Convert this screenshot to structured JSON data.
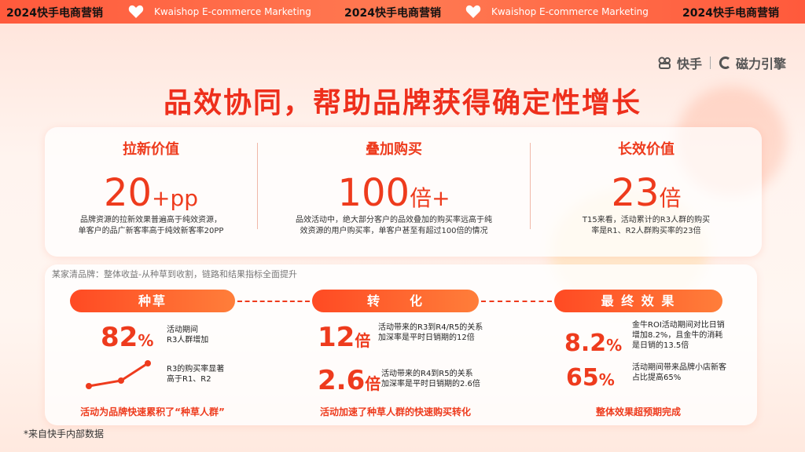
{
  "topbar": {
    "cn": "2024快手电商营销",
    "en": "Kwaishop E-commerce Marketing"
  },
  "logo": {
    "kuaishou": "快手",
    "cili": "磁力引擎"
  },
  "title": "品效协同，帮助品牌获得确定性增长",
  "values": [
    {
      "heading": "拉新价值",
      "big": "20",
      "big_unit": "+pp",
      "desc_1": "品牌资源的拉新效果普遍高于纯效资源，",
      "desc_2": "单客户的品广新客率高于纯效新客率20PP"
    },
    {
      "heading": "叠加购买",
      "big": "100",
      "big_unit": "倍+",
      "desc_1": "品效活动中，绝大部分客户的品效叠加的购买率远高于纯",
      "desc_2": "效资源的用户购买率，单客户甚至有超过100倍的情况"
    },
    {
      "heading": "长效价值",
      "big": "23",
      "big_unit": "倍",
      "desc_1": "T15来看，活动累计的R3人群的购买",
      "desc_2": "率是R1、R2人群购买率的23倍"
    }
  ],
  "case": {
    "label": "某家清品牌：整体收益-从种草到收割，链路和结果指标全面提升",
    "stages": [
      {
        "pill": "种草",
        "stat1": "82",
        "stat1_unit": "%",
        "note1_1": "活动期间",
        "note1_2": "R3人群增加",
        "note2_1": "R3的购买率显著",
        "note2_2": "高于R1、R2",
        "footer": "活动为品牌快速累积了“种草人群”"
      },
      {
        "pill": "转　　化",
        "stat1": "12",
        "stat1_unit": "倍",
        "note1_1": "活动带来的R3到R4/R5的关系",
        "note1_2": "加深率是平时日销期的12倍",
        "stat2": "2.6",
        "stat2_unit": "倍",
        "note2_1": "活动带来的R4到R5的关系",
        "note2_2": "加深率是平时日销期的2.6倍",
        "footer": "活动加速了种草人群的快速购买转化"
      },
      {
        "pill": "最 终 效 果",
        "stat1": "8.2",
        "stat1_unit": "%",
        "note1_1": "金牛ROI活动期间对比日销",
        "note1_2": "增加8.2%，且金牛的消耗",
        "note1_3": "是日销的13.5倍",
        "stat2": "65",
        "stat2_unit": "%",
        "note2_1": "活动期间带来品牌小店新客",
        "note2_2": "占比提高65%",
        "footer": "整体效果超预期完成"
      }
    ]
  },
  "source": "*来自快手内部数据",
  "colors": {
    "accent": "#ee3b1d",
    "topbar": "#ff5a3c"
  }
}
